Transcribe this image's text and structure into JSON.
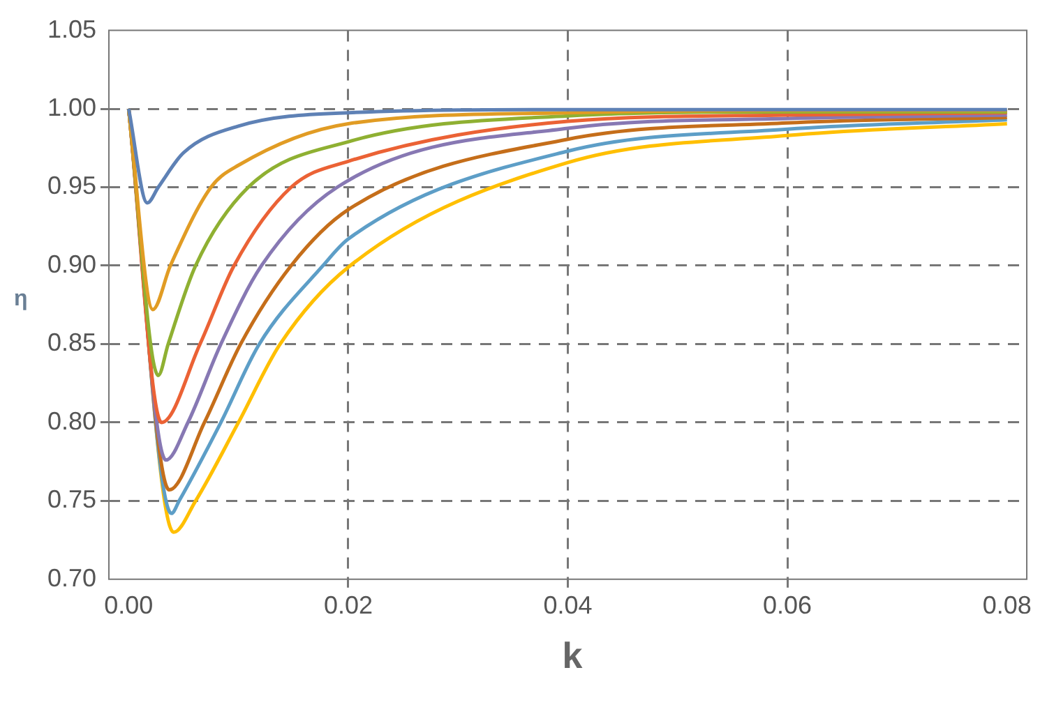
{
  "chart_data": {
    "type": "line",
    "xlabel": "k",
    "ylabel": "η",
    "xlim": [
      -0.0018,
      0.0818
    ],
    "ylim": [
      0.7,
      1.05
    ],
    "xticks": [
      {
        "value": 0,
        "label": "0.00"
      },
      {
        "value": 0.02,
        "label": "0.02"
      },
      {
        "value": 0.04,
        "label": "0.04"
      },
      {
        "value": 0.06,
        "label": "0.06"
      },
      {
        "value": 0.08,
        "label": "0.08"
      }
    ],
    "yticks": [
      {
        "value": 0.7,
        "label": "0.70"
      },
      {
        "value": 0.75,
        "label": "0.75"
      },
      {
        "value": 0.8,
        "label": "0.80"
      },
      {
        "value": 0.85,
        "label": "0.85"
      },
      {
        "value": 0.9,
        "label": "0.90"
      },
      {
        "value": 0.95,
        "label": "0.95"
      },
      {
        "value": 1.0,
        "label": "1.00"
      },
      {
        "value": 1.05,
        "label": "1.05"
      }
    ],
    "grid": true,
    "line_style": "solid",
    "series": [
      {
        "color": "#5e81b5",
        "x": [
          0,
          0.0017,
          0.0027,
          0.005,
          0.01,
          0.02,
          0.04,
          0.06,
          0.08
        ],
        "values": [
          1.0,
          0.94,
          0.95,
          0.972,
          0.989,
          0.9975,
          0.9995,
          0.9995,
          0.9995
        ]
      },
      {
        "color": "#e19c24",
        "x": [
          0,
          0.0022,
          0.0038,
          0.0075,
          0.01,
          0.02,
          0.04,
          0.06,
          0.08
        ],
        "values": [
          1.0,
          0.872,
          0.9,
          0.95,
          0.964,
          0.9905,
          0.9975,
          0.999,
          0.999
        ]
      },
      {
        "color": "#8fb032",
        "x": [
          0,
          0.0027,
          0.0036,
          0.0061,
          0.0109,
          0.02,
          0.04,
          0.06,
          0.08
        ],
        "values": [
          1.0,
          0.83,
          0.85,
          0.9,
          0.95,
          0.979,
          0.9955,
          0.998,
          0.998
        ]
      },
      {
        "color": "#eb6235",
        "x": [
          0,
          0.003,
          0.0065,
          0.0096,
          0.0148,
          0.02,
          0.04,
          0.06,
          0.08
        ],
        "values": [
          1.0,
          0.8,
          0.85,
          0.9,
          0.95,
          0.9665,
          0.992,
          0.996,
          0.9975
        ]
      },
      {
        "color": "#8778b3",
        "x": [
          0,
          0.0034,
          0.0054,
          0.0084,
          0.0121,
          0.019,
          0.04,
          0.06,
          0.08
        ],
        "values": [
          1.0,
          0.776,
          0.8,
          0.85,
          0.9,
          0.95,
          0.9876,
          0.9938,
          0.996
        ]
      },
      {
        "color": "#c56e1a",
        "x": [
          0,
          0.0037,
          0.0069,
          0.0102,
          0.0148,
          0.02,
          0.04,
          0.06,
          0.08
        ],
        "values": [
          1.0,
          0.757,
          0.8,
          0.85,
          0.9,
          0.9357,
          0.9806,
          0.991,
          0.9945
        ]
      },
      {
        "color": "#5d9ec7",
        "x": [
          0,
          0.0039,
          0.0046,
          0.0084,
          0.0119,
          0.0177,
          0.02,
          0.04,
          0.06,
          0.08
        ],
        "values": [
          1.0,
          0.742,
          0.75,
          0.8,
          0.85,
          0.9,
          0.917,
          0.973,
          0.987,
          0.993
        ]
      },
      {
        "color": "#ffbf00",
        "x": [
          0,
          0.0041,
          0.0061,
          0.01,
          0.0138,
          0.02,
          0.04,
          0.06,
          0.08
        ],
        "values": [
          1.0,
          0.73,
          0.75,
          0.8,
          0.85,
          0.899,
          0.9657,
          0.983,
          0.9905
        ]
      }
    ]
  }
}
